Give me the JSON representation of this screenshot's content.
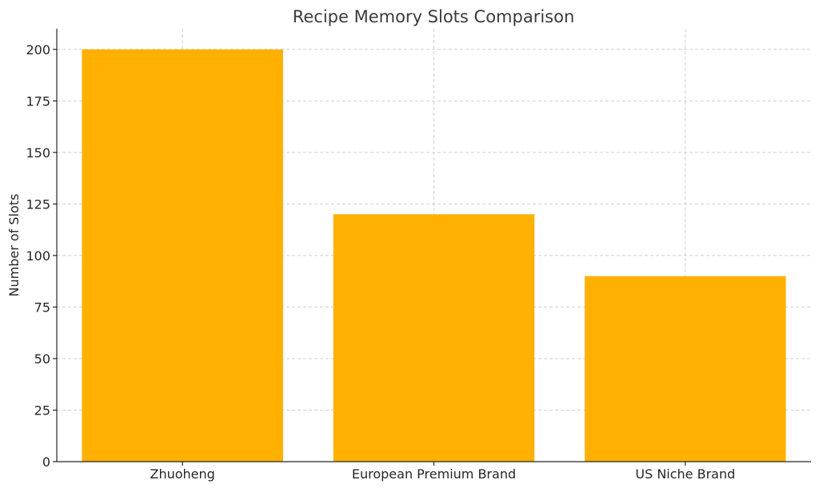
{
  "chart_data": {
    "type": "bar",
    "title": "Recipe Memory Slots Comparison",
    "xlabel": "",
    "ylabel": "Number of Slots",
    "categories": [
      "Zhuoheng",
      "European Premium Brand",
      "US Niche Brand"
    ],
    "values": [
      200,
      120,
      90
    ],
    "ylim": [
      0,
      210
    ],
    "yticks": [
      0,
      25,
      50,
      75,
      100,
      125,
      150,
      175,
      200
    ],
    "grid": true,
    "bar_color": "#ffb000"
  }
}
